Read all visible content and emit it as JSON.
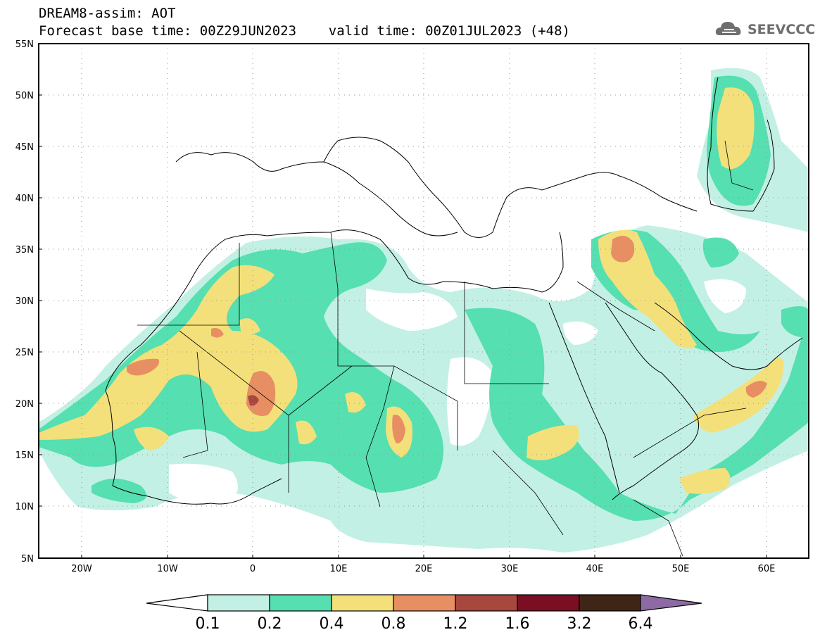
{
  "header": {
    "line1": "DREAM8-assim: AOT",
    "line2": "Forecast base time: 00Z29JUN2023    valid time: 00Z01JUL2023 (+48)"
  },
  "logo": {
    "text": "SEEVCCC",
    "icon": "cloud-icon"
  },
  "map": {
    "lat_labels": [
      "55N",
      "50N",
      "45N",
      "40N",
      "35N",
      "30N",
      "25N",
      "20N",
      "15N",
      "10N",
      "5N"
    ],
    "lon_labels": [
      "20W",
      "10W",
      "0",
      "10E",
      "20E",
      "30E",
      "40E",
      "50E",
      "60E"
    ]
  },
  "colorbar": {
    "labels": [
      "0.1",
      "0.2",
      "0.4",
      "0.8",
      "1.2",
      "1.6",
      "3.2",
      "6.4"
    ],
    "colors": [
      "#c3f0e4",
      "#56dfb0",
      "#f3e07a",
      "#e88e63",
      "#a8473e",
      "#7a0e23",
      "#3e2516",
      "#8e6aa5"
    ],
    "under_color": "#ffffff"
  }
}
